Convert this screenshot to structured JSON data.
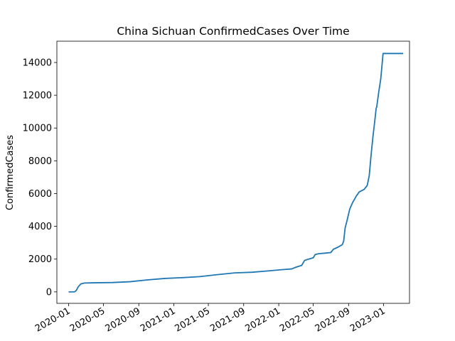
{
  "chart_data": {
    "type": "line",
    "title": "China Sichuan ConfirmedCases Over Time",
    "xlabel": "",
    "ylabel": "ConfirmedCases",
    "xlim": [
      "2019-11-21",
      "2023-04-01"
    ],
    "ylim": [
      -700,
      15300
    ],
    "x_ticks": [
      "2020-01",
      "2020-05",
      "2020-09",
      "2021-01",
      "2021-05",
      "2021-09",
      "2022-01",
      "2022-05",
      "2022-09",
      "2023-01"
    ],
    "y_ticks": [
      0,
      2000,
      4000,
      6000,
      8000,
      10000,
      12000,
      14000
    ],
    "grid": false,
    "line_color": "#1f77b4",
    "series": [
      {
        "name": "",
        "points": [
          [
            "2020-01-01",
            0
          ],
          [
            "2020-01-22",
            5
          ],
          [
            "2020-01-28",
            100
          ],
          [
            "2020-02-03",
            300
          ],
          [
            "2020-02-12",
            480
          ],
          [
            "2020-02-25",
            540
          ],
          [
            "2020-04-01",
            555
          ],
          [
            "2020-06-01",
            570
          ],
          [
            "2020-08-01",
            620
          ],
          [
            "2020-10-01",
            730
          ],
          [
            "2020-12-01",
            820
          ],
          [
            "2021-02-01",
            870
          ],
          [
            "2021-04-01",
            930
          ],
          [
            "2021-06-01",
            1050
          ],
          [
            "2021-08-01",
            1160
          ],
          [
            "2021-10-01",
            1200
          ],
          [
            "2021-12-01",
            1290
          ],
          [
            "2022-01-15",
            1360
          ],
          [
            "2022-02-15",
            1400
          ],
          [
            "2022-03-01",
            1500
          ],
          [
            "2022-03-22",
            1620
          ],
          [
            "2022-04-01",
            1920
          ],
          [
            "2022-04-15",
            2000
          ],
          [
            "2022-05-01",
            2080
          ],
          [
            "2022-05-08",
            2280
          ],
          [
            "2022-05-20",
            2330
          ],
          [
            "2022-06-15",
            2370
          ],
          [
            "2022-07-01",
            2400
          ],
          [
            "2022-07-10",
            2600
          ],
          [
            "2022-07-25",
            2720
          ],
          [
            "2022-08-10",
            2880
          ],
          [
            "2022-08-15",
            3100
          ],
          [
            "2022-08-20",
            3900
          ],
          [
            "2022-08-28",
            4450
          ],
          [
            "2022-09-05",
            5050
          ],
          [
            "2022-09-15",
            5450
          ],
          [
            "2022-09-28",
            5850
          ],
          [
            "2022-10-08",
            6100
          ],
          [
            "2022-10-25",
            6250
          ],
          [
            "2022-11-05",
            6500
          ],
          [
            "2022-11-12",
            7100
          ],
          [
            "2022-11-18",
            8300
          ],
          [
            "2022-11-25",
            9500
          ],
          [
            "2022-12-01",
            10400
          ],
          [
            "2022-12-06",
            11200
          ],
          [
            "2022-12-08",
            11300
          ],
          [
            "2022-12-15",
            12200
          ],
          [
            "2022-12-22",
            13000
          ],
          [
            "2022-12-30",
            14550
          ],
          [
            "2023-03-10",
            14550
          ]
        ]
      }
    ]
  }
}
